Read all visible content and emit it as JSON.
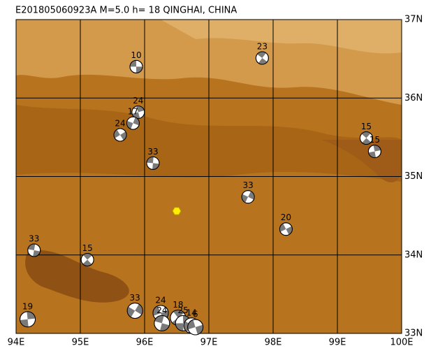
{
  "map": {
    "title": "E201805060923A M=5.0 h= 18 QINGHAI, CHINA",
    "xlim": [
      94,
      100
    ],
    "ylim": [
      33,
      37
    ],
    "xticks": [
      {
        "value": 94,
        "label": "94E"
      },
      {
        "value": 95,
        "label": "95E"
      },
      {
        "value": 96,
        "label": "96E"
      },
      {
        "value": 97,
        "label": "97E"
      },
      {
        "value": 98,
        "label": "98E"
      },
      {
        "value": 99,
        "label": "99E"
      },
      {
        "value": 100,
        "label": "100E"
      }
    ],
    "yticks": [
      {
        "value": 33,
        "label": "33N"
      },
      {
        "value": 34,
        "label": "34N"
      },
      {
        "value": 35,
        "label": "35N"
      },
      {
        "value": 36,
        "label": "36N"
      },
      {
        "value": 37,
        "label": "37N"
      }
    ],
    "epicenter": {
      "lon": 96.5,
      "lat": 34.56
    },
    "events": [
      {
        "lon": 95.87,
        "lat": 36.4,
        "depth": 10
      },
      {
        "lon": 97.83,
        "lat": 36.51,
        "depth": 23
      },
      {
        "lon": 95.9,
        "lat": 35.82,
        "depth": 24
      },
      {
        "lon": 95.82,
        "lat": 35.68,
        "depth": 17
      },
      {
        "lon": 95.62,
        "lat": 35.53,
        "depth": 24
      },
      {
        "lon": 96.13,
        "lat": 35.17,
        "depth": 33
      },
      {
        "lon": 99.45,
        "lat": 35.49,
        "depth": 15
      },
      {
        "lon": 99.58,
        "lat": 35.32,
        "depth": 15
      },
      {
        "lon": 97.61,
        "lat": 34.74,
        "depth": 33
      },
      {
        "lon": 98.2,
        "lat": 34.33,
        "depth": 20
      },
      {
        "lon": 94.28,
        "lat": 34.06,
        "depth": 33
      },
      {
        "lon": 95.11,
        "lat": 33.94,
        "depth": 15
      },
      {
        "lon": 94.18,
        "lat": 33.18,
        "depth": 19
      },
      {
        "lon": 95.85,
        "lat": 33.29,
        "depth": 33
      },
      {
        "lon": 96.25,
        "lat": 33.26,
        "depth": 24
      },
      {
        "lon": 96.27,
        "lat": 33.13,
        "depth": 24
      },
      {
        "lon": 96.52,
        "lat": 33.2,
        "depth": 18
      },
      {
        "lon": 96.6,
        "lat": 33.13,
        "depth": 25
      },
      {
        "lon": 96.73,
        "lat": 33.1,
        "depth": 14
      },
      {
        "lon": 96.79,
        "lat": 33.08,
        "depth": 6
      }
    ]
  }
}
